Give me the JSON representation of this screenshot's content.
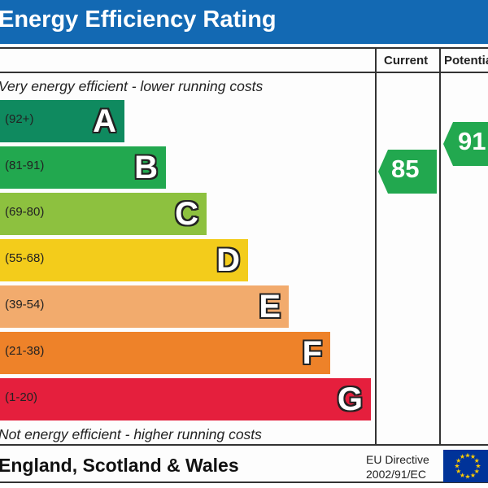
{
  "header": {
    "title": "Energy Efficiency Rating"
  },
  "columns": {
    "current": "Current",
    "potential": "Potential"
  },
  "notes": {
    "top": "Very energy efficient - lower running costs",
    "bottom": "Not energy efficient - higher running costs"
  },
  "footer": {
    "region": "England, Scotland & Wales",
    "directive_line1": "EU Directive",
    "directive_line2": "2002/91/EC"
  },
  "colors": {
    "header": "#1369b3",
    "A": "#0f8a5f",
    "B": "#22a84f",
    "C": "#8dc13f",
    "D": "#f3cc1b",
    "E": "#f2ab6d",
    "F": "#ee8229",
    "G": "#e51f3d",
    "eu_blue": "#003399",
    "eu_star": "#ffcc00"
  },
  "chart_data": {
    "type": "bar",
    "title": "Energy Efficiency Rating",
    "bands": [
      {
        "letter": "A",
        "range": "(92+)"
      },
      {
        "letter": "B",
        "range": "(81-91)"
      },
      {
        "letter": "C",
        "range": "(69-80)"
      },
      {
        "letter": "D",
        "range": "(55-68)"
      },
      {
        "letter": "E",
        "range": "(39-54)"
      },
      {
        "letter": "F",
        "range": "(21-38)"
      },
      {
        "letter": "G",
        "range": "(1-20)"
      }
    ],
    "current": {
      "label": "Current",
      "value": "85",
      "band": "B"
    },
    "potential": {
      "label": "Potential",
      "value": "91",
      "band": "B"
    }
  }
}
